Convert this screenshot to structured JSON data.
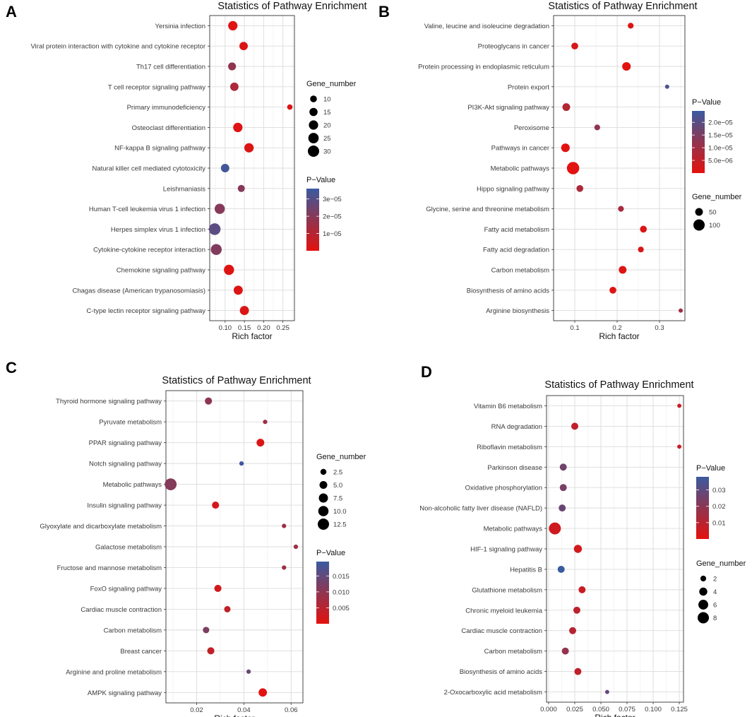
{
  "figure": {
    "panel_labels": [
      "A",
      "B",
      "C",
      "D"
    ]
  },
  "chart_data": [
    {
      "type": "scatter",
      "panel": "A",
      "title": "Statistics of Pathway Enrichment",
      "xlabel": "Rich factor",
      "ylabel": "",
      "xlim": [
        0.06,
        0.28
      ],
      "xticks": [
        0.1,
        0.15,
        0.2,
        0.25
      ],
      "xtick_labels": [
        "0.10",
        "0.15",
        "0.20",
        "0.25"
      ],
      "categories": [
        "Yersinia infection",
        "Viral protein interaction with cytokine and cytokine receptor",
        "Th17 cell differentiation",
        "T cell receptor signaling pathway",
        "Primary immunodeficiency",
        "Osteoclast differentiation",
        "NF-kappa B signaling pathway",
        "Natural killer cell mediated cytotoxicity",
        "Leishmaniasis",
        "Human T-cell leukemia virus 1 infection",
        "Herpes simplex virus 1 infection",
        "Cytokine-cytokine receptor interaction",
        "Chemokine signaling pathway",
        "Chagas disease (American trypanosomiasis)",
        "C-type lectin receptor signaling pathway"
      ],
      "x": [
        0.12,
        0.148,
        0.118,
        0.124,
        0.268,
        0.133,
        0.162,
        0.1,
        0.142,
        0.086,
        0.073,
        0.077,
        0.11,
        0.134,
        0.15
      ],
      "pvalue": [
        1e-06,
        2e-06,
        1.8e-05,
        1.2e-05,
        1e-06,
        1e-06,
        1.5e-06,
        3.4e-05,
        2e-05,
        2e-05,
        2.9e-05,
        2.1e-05,
        1e-06,
        1.5e-06,
        2e-06
      ],
      "gene_number": [
        20,
        16,
        14,
        16,
        6,
        20,
        20,
        16,
        11,
        24,
        32,
        28,
        24,
        19,
        19
      ],
      "size_legend": {
        "title": "Gene_number",
        "values": [
          10,
          15,
          20,
          25,
          30
        ],
        "labels": [
          "10",
          "15",
          "20",
          "25",
          "30"
        ]
      },
      "color_legend": {
        "title": "P−Value",
        "min": 0,
        "max": 3.6e-05,
        "ticks": [
          3e-05,
          2e-05,
          1e-05
        ],
        "labels": [
          "3e−05",
          "2e−05",
          "1e−05"
        ],
        "low_color": "#e4110e",
        "high_color": "#3a5ba0"
      },
      "legend_order": [
        "size",
        "color"
      ]
    },
    {
      "type": "scatter",
      "panel": "B",
      "title": "Statistics of Pathway Enrichment",
      "xlabel": "Rich factor",
      "ylabel": "",
      "xlim": [
        0.05,
        0.36
      ],
      "xticks": [
        0.1,
        0.2,
        0.3
      ],
      "xtick_labels": [
        "0.1",
        "0.2",
        "0.3"
      ],
      "categories": [
        "Valine, leucine and isoleucine degradation",
        "Proteoglycans in cancer",
        "Protein processing in endoplasmic reticulum",
        "Protein export",
        "PI3K-Akt signaling pathway",
        "Peroxisome",
        "Pathways in cancer",
        "Metabolic pathways",
        "Hippo signaling pathway",
        "Glycine, serine and threonine metabolism",
        "Fatty acid metabolism",
        "Fatty acid degradation",
        "Carbon metabolism",
        "Biosynthesis of amino acids",
        "Arginine biosynthesis"
      ],
      "x": [
        0.232,
        0.1,
        0.222,
        0.318,
        0.08,
        0.153,
        0.078,
        0.096,
        0.112,
        0.209,
        0.262,
        0.256,
        0.213,
        0.19,
        0.35
      ],
      "pvalue": [
        1e-06,
        2e-06,
        5e-07,
        2.2e-05,
        7e-06,
        1.2e-05,
        5e-07,
        5e-07,
        8e-06,
        9e-06,
        1e-06,
        2e-06,
        1e-06,
        1e-06,
        1e-05
      ],
      "gene_number": [
        30,
        40,
        60,
        10,
        50,
        30,
        60,
        190,
        40,
        30,
        40,
        30,
        50,
        40,
        10
      ],
      "size_legend": {
        "title": "Gene_number",
        "values": [
          50,
          100
        ],
        "labels": [
          "50",
          "100"
        ]
      },
      "color_legend": {
        "title": "P−Value",
        "min": 0,
        "max": 2.45e-05,
        "ticks": [
          2e-05,
          1.5e-05,
          1e-05,
          5e-06
        ],
        "labels": [
          "2.0e−05",
          "1.5e−05",
          "1.0e−05",
          "5.0e−06"
        ],
        "low_color": "#e4110e",
        "high_color": "#3a5ba0"
      },
      "legend_order": [
        "color",
        "size"
      ]
    },
    {
      "type": "scatter",
      "panel": "C",
      "title": "Statistics of Pathway Enrichment",
      "xlabel": "Rich factor",
      "ylabel": "",
      "xlim": [
        0.007,
        0.065
      ],
      "xticks": [
        0.02,
        0.04,
        0.06
      ],
      "xtick_labels": [
        "0.02",
        "0.04",
        "0.06"
      ],
      "categories": [
        "Thyroid hormone signaling pathway",
        "Pyruvate metabolism",
        "PPAR signaling pathway",
        "Notch signaling pathway",
        "Metabolic pathways",
        "Insulin signaling pathway",
        "Glyoxylate and dicarboxylate metabolism",
        "Galactose metabolism",
        "Fructose and mannose metabolism",
        "FoxO signaling pathway",
        "Cardiac muscle contraction",
        "Carbon metabolism",
        "Breast cancer",
        "Arginine and proline metabolism",
        "AMPK signaling pathway"
      ],
      "x": [
        0.025,
        0.049,
        0.047,
        0.039,
        0.009,
        0.028,
        0.057,
        0.062,
        0.057,
        0.029,
        0.033,
        0.024,
        0.026,
        0.042,
        0.048
      ],
      "pvalue": [
        0.01,
        0.008,
        0.001,
        0.019,
        0.011,
        0.002,
        0.008,
        0.008,
        0.008,
        0.002,
        0.004,
        0.012,
        0.004,
        0.014,
        0.0005
      ],
      "gene_number": [
        4,
        1,
        5,
        1,
        14,
        4,
        1,
        1,
        1,
        4,
        3,
        3,
        4,
        1,
        6
      ],
      "size_legend": {
        "title": "Gene_number",
        "values": [
          2.5,
          5.0,
          7.5,
          10.0,
          12.5
        ],
        "labels": [
          "2.5",
          "5.0",
          "7.5",
          "10.0",
          "12.5"
        ]
      },
      "color_legend": {
        "title": "P−Value",
        "min": 0,
        "max": 0.0195,
        "ticks": [
          0.015,
          0.01,
          0.005
        ],
        "labels": [
          "0.015",
          "0.010",
          "0.005"
        ],
        "low_color": "#e4110e",
        "high_color": "#3a5ba0"
      },
      "legend_order": [
        "size",
        "color"
      ]
    },
    {
      "type": "scatter",
      "panel": "D",
      "title": "Statistics of Pathway Enrichment",
      "xlabel": "Rich factor",
      "ylabel": "",
      "xlim": [
        -0.002,
        0.129
      ],
      "xticks": [
        0.0,
        0.025,
        0.05,
        0.075,
        0.1,
        0.125
      ],
      "xtick_labels": [
        "0.000",
        "0.025",
        "0.050",
        "0.075",
        "0.100",
        "0.125"
      ],
      "categories": [
        "Vitamin B6 metabolism",
        "RNA degradation",
        "Riboflavin metabolism",
        "Parkinson disease",
        "Oxidative phosphorylation",
        "Non-alcoholic fatty liver disease (NAFLD)",
        "Metabolic pathways",
        "HIF-1 signaling pathway",
        "Hepatitis B",
        "Glutathione metabolism",
        "Chronic myeloid leukemia",
        "Cardiac muscle contraction",
        "Carbon metabolism",
        "Biosynthesis of amino acids",
        "2-Oxocarboxylic acid metabolism"
      ],
      "x": [
        0.125,
        0.025,
        0.125,
        0.014,
        0.014,
        0.013,
        0.006,
        0.028,
        0.012,
        0.032,
        0.027,
        0.023,
        0.016,
        0.028,
        0.056
      ],
      "pvalue": [
        0.006,
        0.008,
        0.006,
        0.026,
        0.024,
        0.027,
        0.005,
        0.004,
        0.038,
        0.006,
        0.009,
        0.01,
        0.018,
        0.008,
        0.028
      ],
      "gene_number": [
        1,
        3,
        1,
        3,
        3,
        3,
        9,
        4,
        3,
        3,
        3,
        3,
        3,
        3,
        1
      ],
      "size_legend": {
        "title": "Gene_number",
        "values": [
          2,
          4,
          6,
          8
        ],
        "labels": [
          "2",
          "4",
          "6",
          "8"
        ]
      },
      "color_legend": {
        "title": "P−Value",
        "min": 0,
        "max": 0.038,
        "ticks": [
          0.03,
          0.02,
          0.01
        ],
        "labels": [
          "0.03",
          "0.02",
          "0.01"
        ],
        "low_color": "#e4110e",
        "high_color": "#3a5ba0"
      },
      "legend_order": [
        "color",
        "size"
      ]
    }
  ]
}
